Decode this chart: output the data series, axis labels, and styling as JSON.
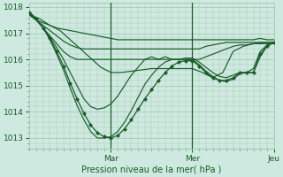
{
  "bg_color": "#ceeae0",
  "grid_color": "#a8c8b8",
  "line_color": "#1a5c28",
  "xlabel": "Pression niveau de la mer( hPa )",
  "xlabel_color": "#1a5c28",
  "tick_color": "#1a5c28",
  "ylim": [
    1012.6,
    1018.15
  ],
  "xlim": [
    0,
    72
  ],
  "day_ticks": [
    24,
    48,
    72
  ],
  "day_labels": [
    "Mar",
    "Mer",
    "Jeu"
  ],
  "series": [
    {
      "x": [
        0,
        2,
        4,
        6,
        8,
        10,
        12,
        14,
        16,
        18,
        20,
        22,
        24,
        26,
        28,
        30,
        32,
        34,
        36,
        38,
        40,
        42,
        44,
        46,
        48,
        50,
        52,
        54,
        56,
        58,
        60,
        62,
        64,
        66,
        68,
        70,
        72
      ],
      "y": [
        1017.7,
        1017.5,
        1017.4,
        1017.3,
        1017.2,
        1017.15,
        1017.1,
        1017.05,
        1017.0,
        1016.95,
        1016.9,
        1016.85,
        1016.8,
        1016.75,
        1016.75,
        1016.75,
        1016.75,
        1016.75,
        1016.75,
        1016.75,
        1016.75,
        1016.75,
        1016.75,
        1016.75,
        1016.75,
        1016.75,
        1016.75,
        1016.75,
        1016.75,
        1016.75,
        1016.75,
        1016.75,
        1016.75,
        1016.75,
        1016.8,
        1016.75,
        1016.75
      ],
      "marker": false
    },
    {
      "x": [
        0,
        2,
        4,
        6,
        8,
        10,
        12,
        14,
        16,
        18,
        20,
        22,
        24,
        26,
        28,
        30,
        32,
        34,
        36,
        38,
        40,
        42,
        44,
        46,
        48,
        50,
        52,
        54,
        56,
        58,
        60,
        62,
        64,
        66,
        68,
        70,
        72
      ],
      "y": [
        1017.7,
        1017.5,
        1017.3,
        1017.1,
        1016.9,
        1016.7,
        1016.55,
        1016.45,
        1016.4,
        1016.4,
        1016.4,
        1016.4,
        1016.4,
        1016.4,
        1016.4,
        1016.4,
        1016.4,
        1016.4,
        1016.4,
        1016.4,
        1016.4,
        1016.4,
        1016.4,
        1016.4,
        1016.4,
        1016.4,
        1016.5,
        1016.55,
        1016.6,
        1016.65,
        1016.65,
        1016.65,
        1016.65,
        1016.65,
        1016.65,
        1016.65,
        1016.65
      ],
      "marker": false
    },
    {
      "x": [
        0,
        2,
        4,
        6,
        8,
        10,
        12,
        14,
        16,
        18,
        20,
        22,
        24,
        26,
        28,
        30,
        32,
        34,
        36,
        38,
        40,
        42,
        44,
        46,
        48,
        50,
        52,
        54,
        56,
        58,
        60,
        62,
        64,
        66,
        68,
        70,
        72
      ],
      "y": [
        1017.7,
        1017.5,
        1017.2,
        1016.9,
        1016.6,
        1016.3,
        1016.1,
        1016.0,
        1016.0,
        1016.0,
        1016.0,
        1016.0,
        1016.0,
        1016.0,
        1016.0,
        1016.0,
        1016.0,
        1016.0,
        1016.0,
        1016.0,
        1016.0,
        1016.0,
        1016.0,
        1016.0,
        1016.0,
        1016.0,
        1016.1,
        1016.2,
        1016.3,
        1016.4,
        1016.5,
        1016.55,
        1016.55,
        1016.6,
        1016.6,
        1016.6,
        1016.6
      ],
      "marker": false
    },
    {
      "x": [
        0,
        3,
        6,
        9,
        12,
        15,
        18,
        21,
        24,
        27,
        30,
        33,
        36,
        39,
        42,
        45,
        48,
        51,
        54,
        57,
        60,
        63,
        66,
        69,
        72
      ],
      "y": [
        1017.7,
        1017.55,
        1017.3,
        1017.1,
        1016.75,
        1016.4,
        1016.05,
        1015.7,
        1015.5,
        1015.5,
        1015.55,
        1015.6,
        1015.65,
        1015.65,
        1015.65,
        1015.65,
        1015.65,
        1015.5,
        1015.3,
        1015.5,
        1016.3,
        1016.5,
        1016.6,
        1016.65,
        1016.65
      ],
      "marker": false
    },
    {
      "x": [
        0,
        2,
        4,
        6,
        8,
        10,
        12,
        14,
        16,
        18,
        20,
        22,
        24,
        26,
        28,
        30,
        32,
        34,
        36,
        38,
        40,
        42,
        44,
        46,
        48,
        50,
        52,
        54,
        56,
        58,
        60,
        62,
        64,
        66,
        68,
        70,
        72
      ],
      "y": [
        1017.75,
        1017.5,
        1017.2,
        1016.85,
        1016.45,
        1016.0,
        1015.5,
        1015.0,
        1014.5,
        1014.2,
        1014.1,
        1014.15,
        1014.3,
        1014.6,
        1015.0,
        1015.4,
        1015.7,
        1016.0,
        1016.1,
        1016.0,
        1016.1,
        1016.0,
        1016.0,
        1016.05,
        1016.05,
        1015.9,
        1015.7,
        1015.5,
        1015.35,
        1015.3,
        1015.4,
        1015.5,
        1015.5,
        1015.65,
        1016.3,
        1016.55,
        1016.65
      ],
      "marker": false
    },
    {
      "x": [
        0,
        2,
        4,
        6,
        8,
        10,
        12,
        14,
        16,
        18,
        20,
        22,
        24,
        26,
        28,
        30,
        32,
        34,
        36,
        38,
        40,
        42,
        44,
        46,
        48,
        50,
        52,
        54,
        56,
        58,
        60,
        62,
        64,
        66,
        68,
        70,
        72
      ],
      "y": [
        1017.8,
        1017.55,
        1017.2,
        1016.8,
        1016.3,
        1015.75,
        1015.1,
        1014.5,
        1013.95,
        1013.5,
        1013.2,
        1013.05,
        1013.0,
        1013.1,
        1013.35,
        1013.7,
        1014.1,
        1014.5,
        1014.85,
        1015.2,
        1015.5,
        1015.75,
        1015.9,
        1015.95,
        1015.95,
        1015.75,
        1015.5,
        1015.3,
        1015.2,
        1015.2,
        1015.3,
        1015.5,
        1015.5,
        1015.5,
        1016.2,
        1016.5,
        1016.65
      ],
      "marker": true
    },
    {
      "x": [
        0,
        2,
        4,
        6,
        8,
        10,
        12,
        14,
        16,
        18,
        20,
        22,
        24,
        26,
        28,
        30,
        32,
        34,
        36,
        38,
        40,
        42,
        44,
        46,
        48,
        50,
        52,
        54,
        56,
        58,
        60,
        62,
        64,
        66,
        68,
        70,
        72
      ],
      "y": [
        1017.8,
        1017.55,
        1017.2,
        1016.75,
        1016.2,
        1015.6,
        1014.9,
        1014.25,
        1013.7,
        1013.25,
        1013.0,
        1013.0,
        1013.05,
        1013.25,
        1013.6,
        1014.05,
        1014.55,
        1015.05,
        1015.4,
        1015.7,
        1015.9,
        1016.0,
        1016.0,
        1016.0,
        1016.0,
        1015.8,
        1015.55,
        1015.35,
        1015.2,
        1015.15,
        1015.25,
        1015.45,
        1015.5,
        1015.5,
        1016.1,
        1016.5,
        1016.65
      ],
      "marker": false
    }
  ]
}
